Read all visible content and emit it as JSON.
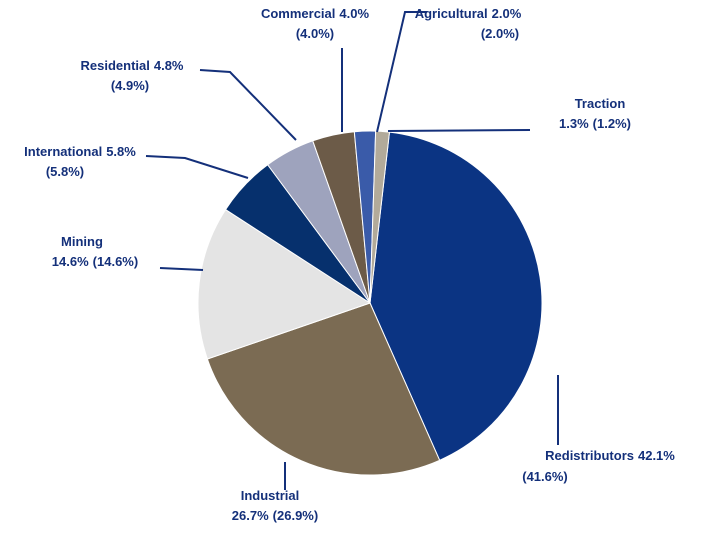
{
  "chart_data": {
    "type": "pie",
    "categories": [
      "Redistributors",
      "Industrial",
      "Mining",
      "International",
      "Residential",
      "Commercial",
      "Agricultural",
      "Traction"
    ],
    "values": [
      42.1,
      26.7,
      14.6,
      5.8,
      4.8,
      4.0,
      2.0,
      1.3
    ],
    "value_labels": [
      "42.1%",
      "26.7%",
      "14.6%",
      "5.8%",
      "4.8%",
      "4.0%",
      "2.0%",
      "1.3%"
    ],
    "secondary_labels": [
      "(41.6%)",
      "(26.9%)",
      "(14.6%)",
      "(5.8%)",
      "(4.9%)",
      "(4.0%)",
      "(2.0%)",
      "(1.2%)"
    ],
    "colors": [
      "#0b3483",
      "#7b6b53",
      "#e4e4e4",
      "#06306d",
      "#9ea3bd",
      "#6c5b48",
      "#3a5ba9",
      "#b2aa9a"
    ]
  }
}
